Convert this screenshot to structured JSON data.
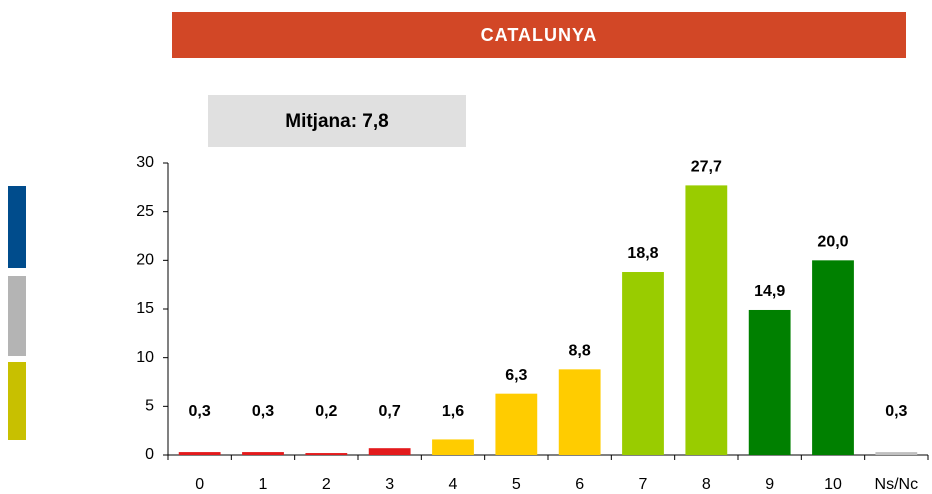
{
  "chart_data": {
    "type": "bar",
    "title": "CATALUNYA",
    "annotation": "Mitjana: 7,8",
    "categories": [
      "0",
      "1",
      "2",
      "3",
      "4",
      "5",
      "6",
      "7",
      "8",
      "9",
      "10",
      "Ns/Nc"
    ],
    "values": [
      0.3,
      0.3,
      0.2,
      0.7,
      1.6,
      6.3,
      8.8,
      18.8,
      27.7,
      14.9,
      20.0,
      0.3
    ],
    "value_labels": [
      "0,3",
      "0,3",
      "0,2",
      "0,7",
      "1,6",
      "6,3",
      "8,8",
      "18,8",
      "27,7",
      "14,9",
      "20,0",
      "0,3"
    ],
    "colors": [
      "#e31a1c",
      "#e31a1c",
      "#e31a1c",
      "#e31a1c",
      "#ffcc00",
      "#ffcc00",
      "#ffcc00",
      "#99cc00",
      "#99cc00",
      "#008000",
      "#008000",
      "#c0c0c0"
    ],
    "ylim": [
      0,
      30
    ],
    "yticks": [
      0,
      5,
      10,
      15,
      20,
      25,
      30
    ],
    "grid": false
  }
}
